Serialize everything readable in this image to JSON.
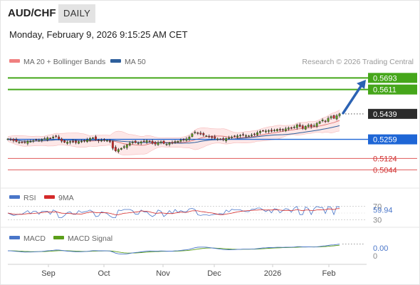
{
  "header": {
    "pair": "AUD/CHF",
    "timeframe": "DAILY",
    "date": "Monday, February 9, 2026 9:15:25 AM CET"
  },
  "legend": {
    "bb": "MA 20 + Bollinger Bands",
    "ma50": "MA 50",
    "credit": "Research © 2026 Trading Central"
  },
  "rsi_legend": {
    "rsi": "RSI",
    "ma": "9MA"
  },
  "macd_legend": {
    "macd": "MACD",
    "signal": "MACD Signal"
  },
  "colors": {
    "up": "#5b9e1a",
    "bb_fill": "#fde4e4",
    "bb_line": "#f08080",
    "ma50": "#2e5f9c",
    "pivot": "#1e66d6",
    "support": "#e05a5a",
    "target": "#45a61a"
  },
  "chart_data": [
    {
      "type": "candlestick",
      "x_ticks": [
        "Sep",
        "Oct",
        "Nov",
        "Dec",
        "2026",
        "Feb"
      ],
      "levels": [
        {
          "value": 0.5693,
          "role": "resistance"
        },
        {
          "value": 0.5611,
          "role": "resistance"
        },
        {
          "value": 0.5439,
          "role": "last"
        },
        {
          "value": 0.5259,
          "role": "pivot"
        },
        {
          "value": 0.5124,
          "role": "support"
        },
        {
          "value": 0.5044,
          "role": "support"
        }
      ],
      "ylim": [
        0.4945,
        0.574
      ],
      "close_path": [
        0.5262,
        0.5258,
        0.525,
        0.5244,
        0.524,
        0.5236,
        0.5238,
        0.5246,
        0.5244,
        0.525,
        0.5256,
        0.5252,
        0.5258,
        0.5264,
        0.527,
        0.5266,
        0.5276,
        0.5282,
        0.5262,
        0.5246,
        0.5238,
        0.524,
        0.5244,
        0.524,
        0.5236,
        0.5244,
        0.5246,
        0.525,
        0.5256,
        0.5266,
        0.527,
        0.5258,
        0.5248,
        0.5252,
        0.5254,
        0.5252,
        0.5242,
        0.5196,
        0.5178,
        0.5188,
        0.5196,
        0.5208,
        0.522,
        0.5232,
        0.524,
        0.5236,
        0.5232,
        0.5242,
        0.5246,
        0.525,
        0.5244,
        0.5232,
        0.5226,
        0.5236,
        0.5242,
        0.523,
        0.5226,
        0.5234,
        0.5232,
        0.5244,
        0.5246,
        0.5254,
        0.5258,
        0.5262,
        0.5276,
        0.5298,
        0.531,
        0.5304,
        0.5296,
        0.529,
        0.5284,
        0.5276,
        0.527,
        0.5266,
        0.5262,
        0.526,
        0.5256,
        0.5266,
        0.527,
        0.5276,
        0.528,
        0.5284,
        0.5288,
        0.5288,
        0.5286,
        0.5284,
        0.529,
        0.5296,
        0.5306,
        0.5316,
        0.532,
        0.5318,
        0.5322,
        0.5316,
        0.5324,
        0.533,
        0.5324,
        0.5326,
        0.5334,
        0.534,
        0.5336,
        0.5346,
        0.5362,
        0.535,
        0.5338,
        0.5352,
        0.536,
        0.5348,
        0.5356,
        0.5372,
        0.5384,
        0.5396,
        0.5388,
        0.5408,
        0.542,
        0.5408,
        0.5426,
        0.5439
      ]
    },
    {
      "type": "line",
      "name": "RSI",
      "value_label": "59.94",
      "y_ticks": [
        70,
        30
      ],
      "ylim": [
        20,
        80
      ]
    },
    {
      "type": "line",
      "name": "MACD",
      "value_label": "0.00",
      "y_ticks": [
        0
      ]
    }
  ]
}
